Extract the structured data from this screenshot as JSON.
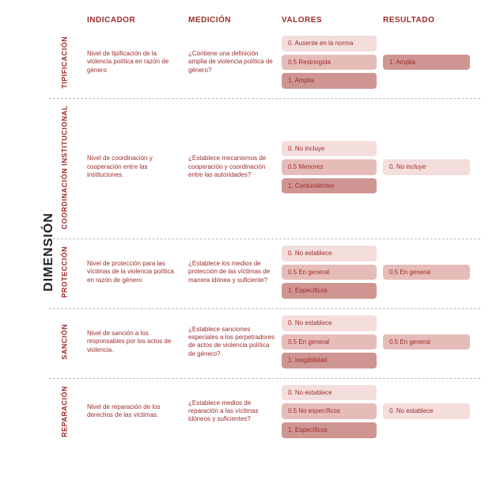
{
  "mainLabel": "DIMENSIÓN",
  "headers": {
    "indicador": "INDICADOR",
    "medicion": "MEDICIÓN",
    "valores": "VALORES",
    "resultado": "RESULTADO"
  },
  "colors": {
    "accent": "#9e2b2b",
    "pill_light": "#f3dedd",
    "pill_mid": "#e6bcb9",
    "pill_dark": "#cf9592",
    "divider": "#bbbbbb",
    "bg": "#ffffff"
  },
  "rows": [
    {
      "dim": "TIPIFICACIÓN",
      "indicator": "Nivel de tipificación de la violencia política en razón de género",
      "medicion": "¿Contiene una definición amplia de violencia política de género?",
      "valores": [
        {
          "label": "0. Ausente en la norma",
          "shade": "light"
        },
        {
          "label": "0.5 Restringida",
          "shade": "mid"
        },
        {
          "label": "1. Amplia",
          "shade": "dark"
        }
      ],
      "resultado": {
        "label": "1. Amplia",
        "shade": "dark"
      }
    },
    {
      "dim": "COORDINACIÓN INSTITUCIONAL",
      "indicator": "Nivel de coordinación y cooperación entre las instituciones.",
      "medicion": "¿Establece mecanismos de cooperación y coordinación entre las autoridades?",
      "valores": [
        {
          "label": "0. No incluye",
          "shade": "light"
        },
        {
          "label": "0.5 Menores",
          "shade": "mid"
        },
        {
          "label": "1. Contundentes",
          "shade": "dark"
        }
      ],
      "resultado": {
        "label": "0. No incluye",
        "shade": "light"
      }
    },
    {
      "dim": "PROTECCIÓN",
      "indicator": "Nivel de protección para las víctimas de la violencia política en razón de género",
      "medicion": "¿Establece los medios de protección de las víctimas de manera idónea y suficiente?",
      "valores": [
        {
          "label": "0. No establece",
          "shade": "light"
        },
        {
          "label": "0.5  En general",
          "shade": "mid"
        },
        {
          "label": "1. Específicos",
          "shade": "dark"
        }
      ],
      "resultado": {
        "label": "0.5  En general",
        "shade": "mid"
      }
    },
    {
      "dim": "SANCIÓN",
      "indicator": "Nivel de sanción a los responsables por los actos de violencia.",
      "medicion": "¿Establece sanciones especiales a los perpetradores de actos de violencia política de género?",
      "valores": [
        {
          "label": "0. No establece",
          "shade": "light"
        },
        {
          "label": "0.5  En general",
          "shade": "mid"
        },
        {
          "label": "1. Inegibilidad",
          "shade": "dark"
        }
      ],
      "resultado": {
        "label": "0.5  En general",
        "shade": "mid"
      }
    },
    {
      "dim": "REPARACIÓN",
      "indicator": "Nivel de reparación de los derechos de las víctimas.",
      "medicion": "¿Establece medios de reparación a las víctimas idóneos y suficientes?",
      "valores": [
        {
          "label": "0. No establece",
          "shade": "light"
        },
        {
          "label": "0.5 No específicos",
          "shade": "mid"
        },
        {
          "label": "1. Específicos",
          "shade": "dark"
        }
      ],
      "resultado": {
        "label": "0. No establece",
        "shade": "light"
      }
    }
  ]
}
